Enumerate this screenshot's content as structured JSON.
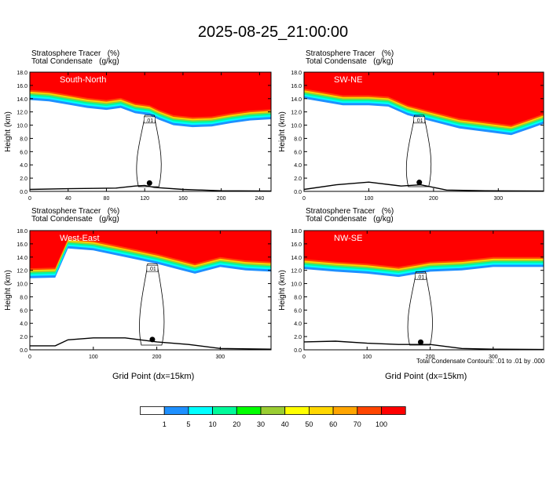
{
  "title": "2025-08-25_21:00:00",
  "panel_header_line1": "Stratosphere Tracer   (%)",
  "panel_header_line2": "Total Condensate   (g/kg)",
  "ylabel": "Height (km)",
  "xlabel": "Grid Point (dx=15km)",
  "footnote": "Total Condensate Contours: .01 to .01 by .000",
  "colors": {
    "levels": [
      "#ffffff",
      "#1e90ff",
      "#00ffff",
      "#00fa9a",
      "#00ff00",
      "#9acd32",
      "#ffff00",
      "#ffd700",
      "#ffa500",
      "#ff4500",
      "#ff0000"
    ],
    "contour": "#000000"
  },
  "colorbar": {
    "labels": [
      "1",
      "5",
      "10",
      "20",
      "30",
      "40",
      "50",
      "60",
      "70",
      "100"
    ]
  },
  "chart_data": [
    {
      "type": "heatmap",
      "panel_title": "South-North",
      "xlim": [
        0,
        252
      ],
      "ylim": [
        0,
        18
      ],
      "xticks": [
        0,
        40,
        80,
        120,
        160,
        200,
        240
      ],
      "yticks": [
        0,
        2,
        4,
        6,
        8,
        10,
        12,
        14,
        16,
        18
      ],
      "contour_label": ".01",
      "marker_x": 125,
      "tropopause": [
        [
          0,
          13.8
        ],
        [
          20,
          13.6
        ],
        [
          40,
          13.1
        ],
        [
          60,
          12.6
        ],
        [
          80,
          12.3
        ],
        [
          95,
          12.6
        ],
        [
          110,
          11.8
        ],
        [
          125,
          11.5
        ],
        [
          135,
          10.8
        ],
        [
          150,
          10.0
        ],
        [
          170,
          9.7
        ],
        [
          190,
          9.8
        ],
        [
          210,
          10.3
        ],
        [
          230,
          10.7
        ],
        [
          252,
          10.9
        ]
      ],
      "terrain": [
        [
          0,
          0.3
        ],
        [
          40,
          0.4
        ],
        [
          90,
          0.5
        ],
        [
          110,
          0.8
        ],
        [
          120,
          0.9
        ],
        [
          130,
          0.6
        ],
        [
          160,
          0.3
        ],
        [
          200,
          0.1
        ],
        [
          252,
          0.05
        ]
      ]
    },
    {
      "type": "heatmap",
      "panel_title": "SW-NE",
      "xlim": [
        0,
        370
      ],
      "ylim": [
        0,
        18
      ],
      "xticks": [
        0,
        100,
        200,
        300
      ],
      "yticks": [
        0,
        2,
        4,
        6,
        8,
        10,
        12,
        14,
        16,
        18
      ],
      "contour_label": ".01",
      "marker_x": 178,
      "tropopause": [
        [
          0,
          14.0
        ],
        [
          30,
          13.5
        ],
        [
          60,
          13.0
        ],
        [
          100,
          13.0
        ],
        [
          130,
          12.8
        ],
        [
          160,
          11.5
        ],
        [
          200,
          10.5
        ],
        [
          240,
          9.5
        ],
        [
          280,
          9.0
        ],
        [
          320,
          8.5
        ],
        [
          350,
          9.5
        ],
        [
          370,
          10.2
        ]
      ],
      "terrain": [
        [
          0,
          0.3
        ],
        [
          50,
          1.0
        ],
        [
          100,
          1.4
        ],
        [
          150,
          0.8
        ],
        [
          180,
          1.0
        ],
        [
          220,
          0.2
        ],
        [
          280,
          0.1
        ],
        [
          370,
          0.05
        ]
      ]
    },
    {
      "type": "heatmap",
      "panel_title": "West-East",
      "xlim": [
        0,
        380
      ],
      "ylim": [
        0,
        18
      ],
      "xticks": [
        0,
        100,
        200,
        300
      ],
      "yticks": [
        0,
        2,
        4,
        6,
        8,
        10,
        12,
        14,
        16,
        18
      ],
      "contour_label": ".01",
      "marker_x": 193,
      "tropopause": [
        [
          0,
          10.8
        ],
        [
          40,
          10.9
        ],
        [
          60,
          15.3
        ],
        [
          100,
          15.0
        ],
        [
          150,
          14.0
        ],
        [
          200,
          13.0
        ],
        [
          240,
          12.0
        ],
        [
          260,
          11.5
        ],
        [
          300,
          12.5
        ],
        [
          340,
          12.0
        ],
        [
          380,
          11.8
        ]
      ],
      "terrain": [
        [
          0,
          0.6
        ],
        [
          40,
          0.6
        ],
        [
          60,
          1.5
        ],
        [
          100,
          1.8
        ],
        [
          150,
          1.8
        ],
        [
          200,
          1.2
        ],
        [
          250,
          0.8
        ],
        [
          300,
          0.2
        ],
        [
          380,
          0.1
        ]
      ]
    },
    {
      "type": "heatmap",
      "panel_title": "NW-SE",
      "xlim": [
        0,
        380
      ],
      "ylim": [
        0,
        18
      ],
      "xticks": [
        0,
        100,
        200,
        300
      ],
      "yticks": [
        0,
        2,
        4,
        6,
        8,
        10,
        12,
        14,
        16,
        18
      ],
      "contour_label": ".01",
      "marker_x": 185,
      "tropopause": [
        [
          0,
          12.2
        ],
        [
          50,
          11.8
        ],
        [
          100,
          11.5
        ],
        [
          150,
          11.0
        ],
        [
          200,
          11.8
        ],
        [
          250,
          12.0
        ],
        [
          300,
          12.5
        ],
        [
          340,
          12.5
        ],
        [
          380,
          12.5
        ]
      ],
      "terrain": [
        [
          0,
          1.2
        ],
        [
          50,
          1.3
        ],
        [
          100,
          1.0
        ],
        [
          150,
          0.8
        ],
        [
          200,
          0.8
        ],
        [
          250,
          0.2
        ],
        [
          300,
          0.1
        ],
        [
          380,
          0.05
        ]
      ]
    }
  ]
}
